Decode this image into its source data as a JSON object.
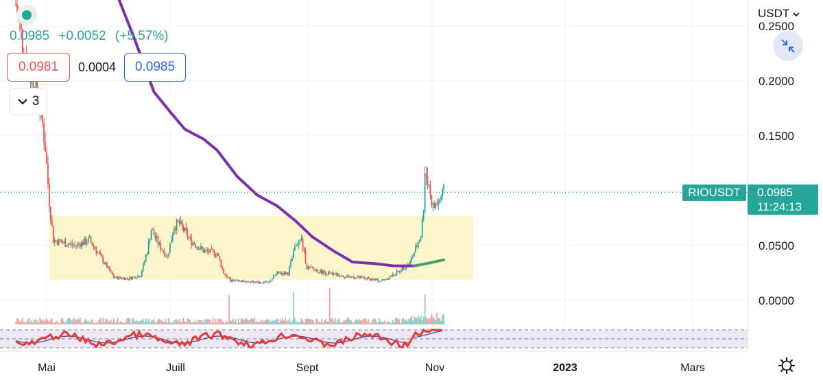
{
  "header": {
    "last_price": "0.0985",
    "change": "+0.0052",
    "change_pct": "(+5.57%)",
    "bid": "0.0981",
    "spread": "0.0004",
    "ask": "0.0985",
    "indicator_count": "3",
    "currency": "USDT"
  },
  "price_tag": {
    "symbol": "RIOUSDT",
    "price": "0.0985",
    "countdown": "11:24:13"
  },
  "colors": {
    "up": "#26a69a",
    "down": "#ef5350",
    "ma": "#7b2fa8",
    "range_box": "#fdf6cc",
    "rsi_band": "#ede7f6",
    "rsi_signal": "#3949ab"
  },
  "chart_data": {
    "type": "candlestick",
    "symbol": "RIOUSDT",
    "y_ticks": [
      "0.2500",
      "0.2000",
      "0.1500",
      "0.0500",
      "0.0000"
    ],
    "x_ticks": [
      {
        "label": "Mai",
        "bold": false
      },
      {
        "label": "Juill",
        "bold": false
      },
      {
        "label": "Sept",
        "bold": false
      },
      {
        "label": "Nov",
        "bold": false
      },
      {
        "label": "2023",
        "bold": true
      },
      {
        "label": "Mars",
        "bold": false
      }
    ],
    "ylim": [
      0,
      0.25
    ],
    "last_close": 0.0985,
    "price_series": {
      "name": "close",
      "points": [
        {
          "x": "2022-04-08",
          "y": 0.27
        },
        {
          "x": "2022-04-15",
          "y": 0.22
        },
        {
          "x": "2022-04-22",
          "y": 0.196
        },
        {
          "x": "2022-04-26",
          "y": 0.18
        },
        {
          "x": "2022-04-30",
          "y": 0.14
        },
        {
          "x": "2022-05-03",
          "y": 0.09
        },
        {
          "x": "2022-05-06",
          "y": 0.055
        },
        {
          "x": "2022-05-12",
          "y": 0.053
        },
        {
          "x": "2022-05-22",
          "y": 0.05
        },
        {
          "x": "2022-06-02",
          "y": 0.055
        },
        {
          "x": "2022-06-10",
          "y": 0.04
        },
        {
          "x": "2022-06-20",
          "y": 0.021
        },
        {
          "x": "2022-07-01",
          "y": 0.02
        },
        {
          "x": "2022-07-10",
          "y": 0.023
        },
        {
          "x": "2022-07-15",
          "y": 0.045
        },
        {
          "x": "2022-07-18",
          "y": 0.065
        },
        {
          "x": "2022-07-24",
          "y": 0.05
        },
        {
          "x": "2022-07-30",
          "y": 0.04
        },
        {
          "x": "2022-08-04",
          "y": 0.068
        },
        {
          "x": "2022-08-08",
          "y": 0.07
        },
        {
          "x": "2022-08-16",
          "y": 0.055
        },
        {
          "x": "2022-08-26",
          "y": 0.045
        },
        {
          "x": "2022-09-05",
          "y": 0.043
        },
        {
          "x": "2022-09-10",
          "y": 0.025
        },
        {
          "x": "2022-09-15",
          "y": 0.018
        },
        {
          "x": "2022-10-01",
          "y": 0.017
        },
        {
          "x": "2022-10-13",
          "y": 0.016
        },
        {
          "x": "2022-10-20",
          "y": 0.025
        },
        {
          "x": "2022-10-28",
          "y": 0.025
        },
        {
          "x": "2022-11-03",
          "y": 0.052
        },
        {
          "x": "2022-11-07",
          "y": 0.055
        },
        {
          "x": "2022-11-11",
          "y": 0.03
        },
        {
          "x": "2022-11-25",
          "y": 0.025
        },
        {
          "x": "2022-12-10",
          "y": 0.022
        },
        {
          "x": "2022-12-25",
          "y": 0.02
        },
        {
          "x": "2023-01-05",
          "y": 0.018
        },
        {
          "x": "2023-01-13",
          "y": 0.022
        },
        {
          "x": "2023-01-20",
          "y": 0.028
        },
        {
          "x": "2023-01-27",
          "y": 0.035
        },
        {
          "x": "2023-02-01",
          "y": 0.05
        },
        {
          "x": "2023-02-04",
          "y": 0.06
        },
        {
          "x": "2023-02-06",
          "y": 0.085
        },
        {
          "x": "2023-02-07",
          "y": 0.12
        },
        {
          "x": "2023-02-09",
          "y": 0.11
        },
        {
          "x": "2023-02-13",
          "y": 0.085
        },
        {
          "x": "2023-02-17",
          "y": 0.09
        },
        {
          "x": "2023-02-21",
          "y": 0.0985
        }
      ]
    },
    "moving_average": {
      "name": "MA",
      "points": [
        {
          "x": "2022-06-22",
          "y": 0.28
        },
        {
          "x": "2022-07-05",
          "y": 0.24
        },
        {
          "x": "2022-07-20",
          "y": 0.19
        },
        {
          "x": "2022-08-01",
          "y": 0.172
        },
        {
          "x": "2022-08-12",
          "y": 0.156
        },
        {
          "x": "2022-08-26",
          "y": 0.147
        },
        {
          "x": "2022-09-05",
          "y": 0.137
        },
        {
          "x": "2022-09-20",
          "y": 0.113
        },
        {
          "x": "2022-10-05",
          "y": 0.096
        },
        {
          "x": "2022-10-20",
          "y": 0.086
        },
        {
          "x": "2022-11-03",
          "y": 0.072
        },
        {
          "x": "2022-11-15",
          "y": 0.058
        },
        {
          "x": "2022-12-01",
          "y": 0.045
        },
        {
          "x": "2022-12-15",
          "y": 0.035
        },
        {
          "x": "2023-01-01",
          "y": 0.0335
        },
        {
          "x": "2023-01-15",
          "y": 0.0315
        },
        {
          "x": "2023-01-30",
          "y": 0.0315
        },
        {
          "x": "2023-02-10",
          "y": 0.034
        },
        {
          "x": "2023-02-21",
          "y": 0.037
        }
      ]
    },
    "range_box": {
      "x_start": "2022-05-03",
      "x_end": "2023-03-15",
      "y_low": 0.019,
      "y_high": 0.077
    },
    "volume_spikes": [
      "2022-09-14",
      "2022-11-01",
      "2022-11-28",
      "2023-02-07"
    ]
  }
}
